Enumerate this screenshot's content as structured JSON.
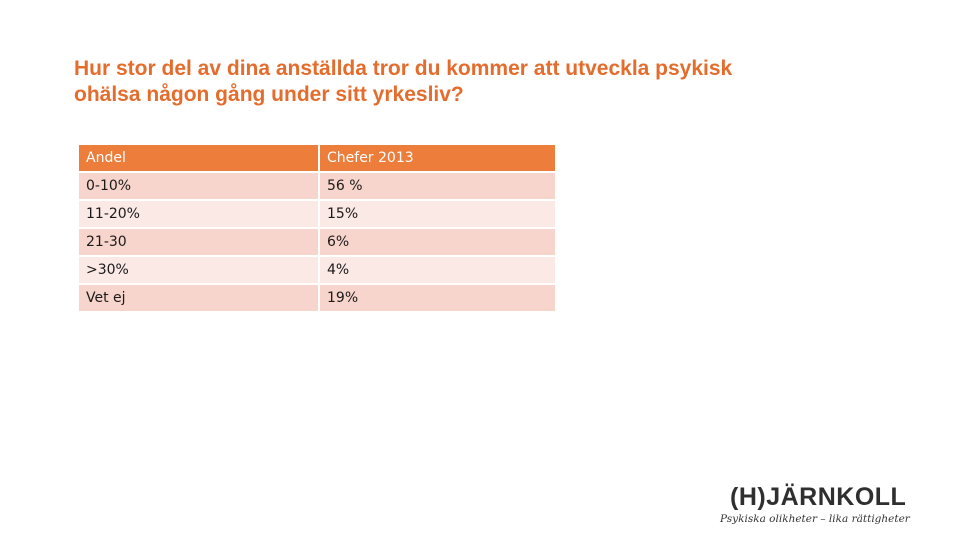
{
  "title": {
    "line1": "Hur stor del av dina anställda tror du kommer att utveckla psykisk",
    "line2": "ohälsa någon gång under sitt yrkesliv?"
  },
  "table": {
    "headers": [
      "Andel",
      "Chefer 2013"
    ],
    "rows": [
      [
        "0-10%",
        "56 %"
      ],
      [
        "11-20%",
        "15%"
      ],
      [
        "21-30",
        "6%"
      ],
      [
        ">30%",
        "4%"
      ],
      [
        "Vet ej",
        "19%"
      ]
    ]
  },
  "logo": {
    "wordmark": "(H)JÄRNKOLL",
    "tagline": "Psykiska olikheter – lika rättigheter"
  },
  "colors": {
    "accent": "#e46c2c",
    "header_fill": "#ec7d3a",
    "row_dark": "#f7d5cc",
    "row_light": "#fbe9e6"
  }
}
